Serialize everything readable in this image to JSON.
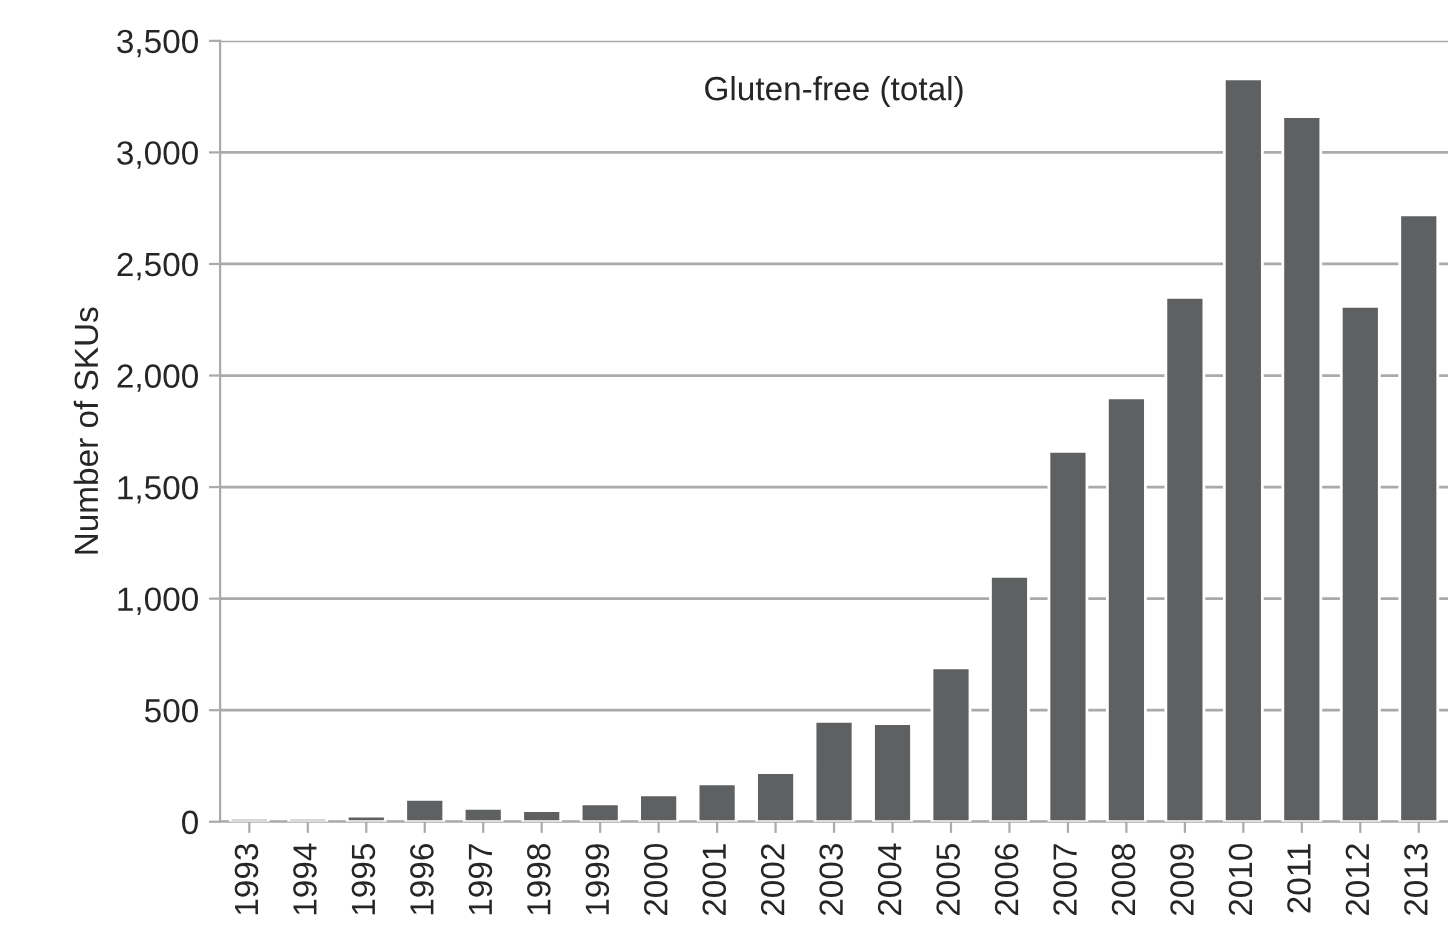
{
  "chart_data": {
    "type": "bar",
    "categories": [
      "1993",
      "1994",
      "1995",
      "1996",
      "1997",
      "1998",
      "1999",
      "2000",
      "2001",
      "2002",
      "2003",
      "2004",
      "2005",
      "2006",
      "2007",
      "2008",
      "2009",
      "2010",
      "2011",
      "2012",
      "2013"
    ],
    "values": [
      15,
      15,
      25,
      100,
      60,
      50,
      80,
      120,
      170,
      220,
      450,
      440,
      690,
      1100,
      1660,
      1900,
      2350,
      3330,
      3160,
      2310,
      2720
    ],
    "color": "#5f6062",
    "ylabel": "Number of SKUs",
    "annotations": [
      "Gluten-free (total)"
    ],
    "ylim": [
      0,
      3500
    ],
    "yticks": [
      {
        "value": 0,
        "label": "0"
      },
      {
        "value": 500,
        "label": "500"
      },
      {
        "value": 1000,
        "label": "1,000"
      },
      {
        "value": 1500,
        "label": "1,500"
      },
      {
        "value": 2000,
        "label": "2,000"
      },
      {
        "value": 2500,
        "label": "2,500"
      },
      {
        "value": 3000,
        "label": "3,000"
      },
      {
        "value": 3500,
        "label": "3,500"
      }
    ],
    "grid": "y"
  }
}
